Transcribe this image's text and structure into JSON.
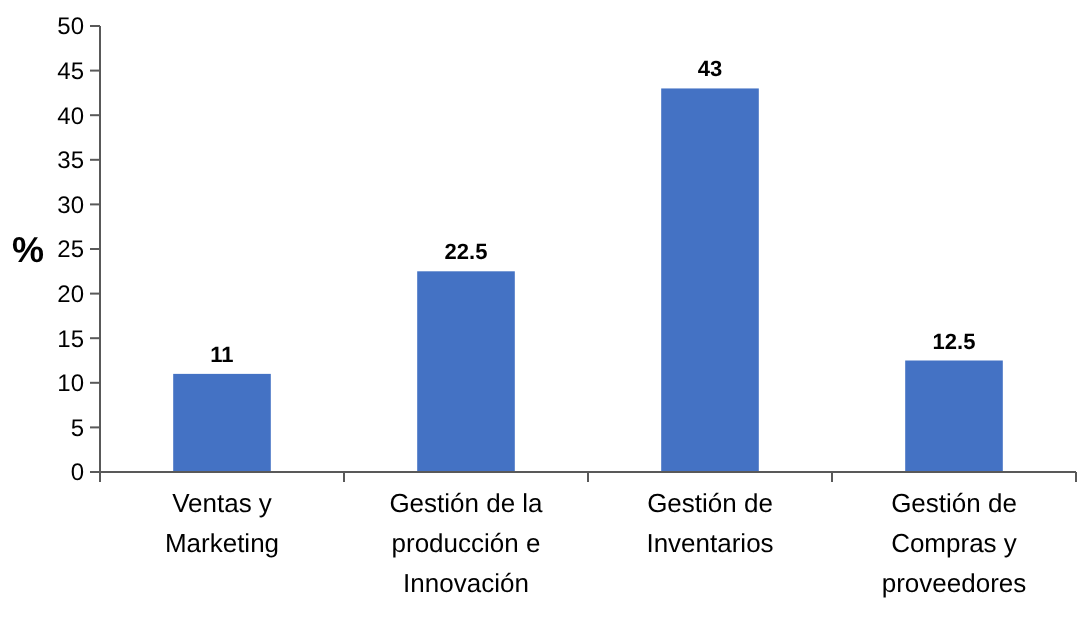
{
  "chart_data": {
    "type": "bar",
    "ylabel": "%",
    "categories": [
      "Ventas y Marketing",
      "Gestión de la producción e Innovación",
      "Gestión de Inventarios",
      "Gestión de Compras y proveedores"
    ],
    "values": [
      11,
      22.5,
      43,
      12.5
    ],
    "color": "#4472c4",
    "ylim": [
      0,
      50
    ],
    "yticks": [
      0,
      5,
      10,
      15,
      20,
      25,
      30,
      35,
      40,
      45,
      50
    ],
    "grid": false,
    "data_labels": true
  }
}
